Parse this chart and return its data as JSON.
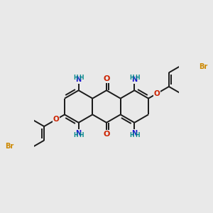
{
  "background_color": "#e9e9e9",
  "bond_color": "#1a1a1a",
  "bond_width": 1.4,
  "atom_colors": {
    "N": "#1a1acc",
    "O": "#cc2200",
    "Br": "#cc8800",
    "H": "#008888"
  },
  "figsize": [
    3.0,
    3.0
  ],
  "dpi": 100
}
